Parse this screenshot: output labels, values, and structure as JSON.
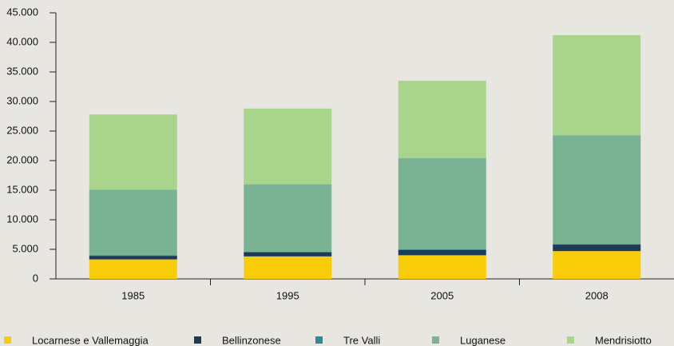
{
  "chart_data": {
    "type": "stacked_bar",
    "categories": [
      "1985",
      "1995",
      "2005",
      "2008"
    ],
    "series": [
      {
        "name": "Locarnese e Vallemaggia",
        "color": "#f9cc0a",
        "values": [
          3300,
          3800,
          4000,
          4700
        ]
      },
      {
        "name": "Bellinzonese",
        "color": "#1d3b55",
        "values": [
          600,
          700,
          900,
          1100
        ]
      },
      {
        "name": "Tre Valli",
        "color": "#2a8c9a",
        "values": [
          100,
          100,
          100,
          100
        ]
      },
      {
        "name": "Luganese",
        "color": "#7ab393",
        "values": [
          11100,
          11400,
          15400,
          18400
        ]
      },
      {
        "name": "Mendrisiotto",
        "color": "#a8d48c",
        "values": [
          12700,
          12800,
          13100,
          16900
        ]
      }
    ],
    "ylim": [
      0,
      45000
    ],
    "yticks": [
      0,
      {
        "value": 5000,
        "label": "5.000"
      },
      {
        "value": 10000,
        "label": "10.000"
      },
      {
        "value": 15000,
        "label": "15.000"
      },
      {
        "value": 20000,
        "label": "20.000"
      },
      {
        "value": 25000,
        "label": "25.000"
      },
      {
        "value": 30000,
        "label": "30.000"
      },
      {
        "value": 35000,
        "label": "35.000"
      },
      {
        "value": 40000,
        "label": "40.000"
      },
      {
        "value": 45000,
        "label": "45.000"
      }
    ],
    "legend": "bottom"
  }
}
